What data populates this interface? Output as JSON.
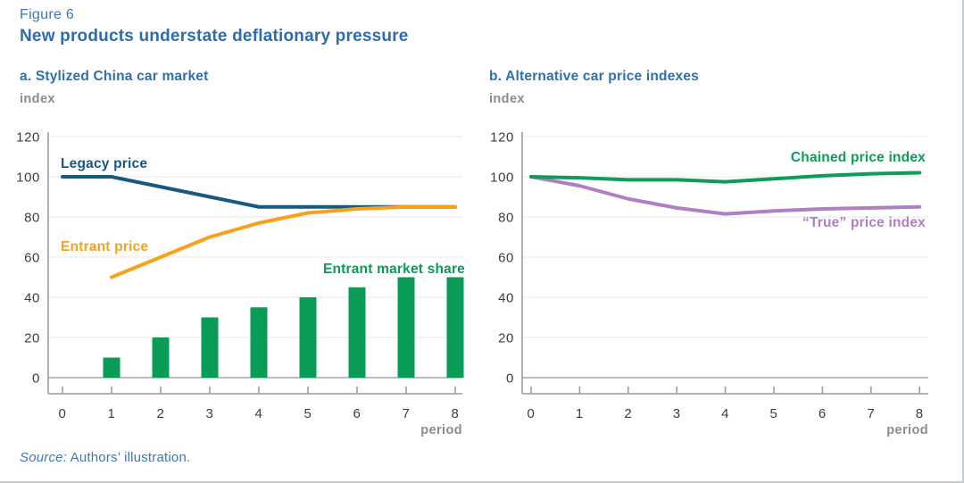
{
  "figure": {
    "label": "Figure 6",
    "title": "New products understate deflationary pressure",
    "source": {
      "label": "Source:",
      "text": " Authors’ illustration."
    }
  },
  "colors": {
    "title_blue": "#2d6cae",
    "legacy_blue": "#17597f",
    "entrant_orange": "#f9a11b",
    "share_green": "#0a9b57",
    "chained_green": "#0e9c57",
    "true_purple": "#b17dc5",
    "axis_gray": "#9c9c9c",
    "grid_gray": "#ededed",
    "zero_line_gray": "#a6a6a6",
    "tick_text": "#3d3d3d",
    "muted_text": "#8c8c8c"
  },
  "chart_data": [
    {
      "panel": "a",
      "title": "a. Stylized China car market",
      "type": "combo",
      "xlabel": "period",
      "ylabel": "index",
      "x": [
        0,
        1,
        2,
        3,
        4,
        5,
        6,
        7,
        8
      ],
      "ylim": [
        0,
        120
      ],
      "yticks": [
        0,
        20,
        40,
        60,
        80,
        100,
        120
      ],
      "grid": true,
      "legend_position": "inline-labels",
      "series": [
        {
          "name": "Legacy price",
          "type": "line",
          "color": "#17597f",
          "x": [
            0,
            1,
            2,
            3,
            4,
            5,
            6,
            7,
            8
          ],
          "values": [
            100,
            100,
            95,
            90,
            85,
            85,
            85,
            85,
            85
          ]
        },
        {
          "name": "Entrant price",
          "type": "line",
          "color": "#f9a11b",
          "x": [
            1,
            2,
            3,
            4,
            5,
            6,
            7,
            8
          ],
          "values": [
            50,
            60,
            70,
            77,
            82,
            84,
            85,
            85
          ]
        },
        {
          "name": "Entrant market share",
          "type": "bar",
          "color": "#0a9b57",
          "x": [
            1,
            2,
            3,
            4,
            5,
            6,
            7,
            8
          ],
          "values": [
            10,
            20,
            30,
            35,
            40,
            45,
            50,
            50
          ]
        }
      ]
    },
    {
      "panel": "b",
      "title": "b. Alternative car price indexes",
      "type": "line",
      "xlabel": "period",
      "ylabel": "index",
      "x": [
        0,
        1,
        2,
        3,
        4,
        5,
        6,
        7,
        8
      ],
      "ylim": [
        0,
        120
      ],
      "yticks": [
        0,
        20,
        40,
        60,
        80,
        100,
        120
      ],
      "grid": true,
      "legend_position": "inline-labels",
      "series": [
        {
          "name": "Chained price index",
          "type": "line",
          "color": "#0e9c57",
          "x": [
            0,
            1,
            2,
            3,
            4,
            5,
            6,
            7,
            8
          ],
          "values": [
            100,
            99.5,
            98.5,
            98.5,
            97.5,
            99,
            100.5,
            101.5,
            102
          ]
        },
        {
          "name": "“True” price index",
          "type": "line",
          "color": "#b17dc5",
          "x": [
            0,
            1,
            2,
            3,
            4,
            5,
            6,
            7,
            8
          ],
          "values": [
            100,
            95.5,
            89,
            84.5,
            81.5,
            83,
            84,
            84.5,
            85
          ]
        }
      ]
    }
  ]
}
